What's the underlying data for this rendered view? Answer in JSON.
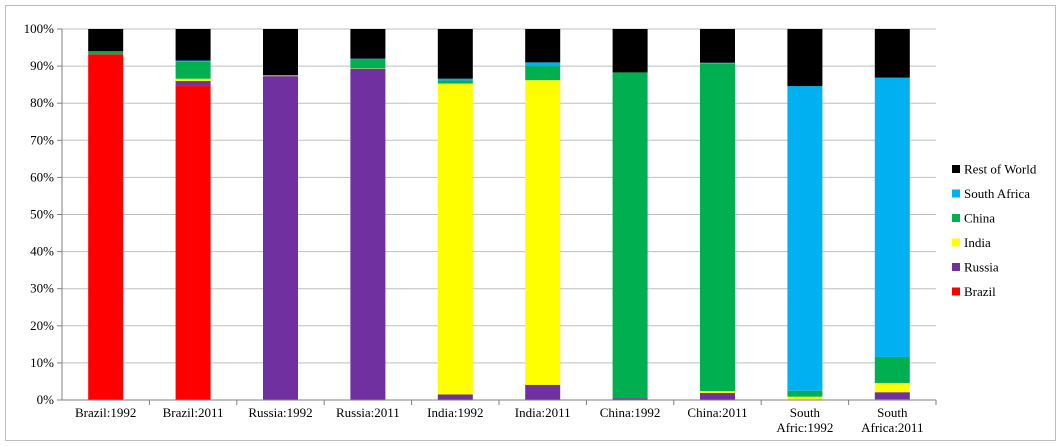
{
  "chart_data": {
    "type": "bar",
    "stacked": true,
    "percent": true,
    "title": "",
    "xlabel": "",
    "ylabel": "",
    "ylim": [
      0,
      100
    ],
    "y_ticks": [
      "0%",
      "10%",
      "20%",
      "30%",
      "40%",
      "50%",
      "60%",
      "70%",
      "80%",
      "90%",
      "100%"
    ],
    "grid": "horizontal",
    "legend_position": "right",
    "categories": [
      [
        "Brazil:1992"
      ],
      [
        "Brazil:2011"
      ],
      [
        "Russia:1992"
      ],
      [
        "Russia:2011"
      ],
      [
        "India:1992"
      ],
      [
        "India:2011"
      ],
      [
        "China:1992"
      ],
      [
        "China:2011"
      ],
      [
        "South",
        "Afric:1992"
      ],
      [
        "South",
        "Africa:2011"
      ]
    ],
    "series": [
      {
        "name": "Brazil",
        "color": "#ff0000",
        "values": [
          93.2,
          84.8,
          0,
          0,
          0,
          0,
          0,
          0,
          0,
          0.2
        ]
      },
      {
        "name": "Russia",
        "color": "#7030a0",
        "values": [
          0,
          1.2,
          87.3,
          89.3,
          1.5,
          4.1,
          0.5,
          1.9,
          0.1,
          1.9
        ]
      },
      {
        "name": "India",
        "color": "#ffff00",
        "values": [
          0,
          0.6,
          0.1,
          0.1,
          83.8,
          82.1,
          0,
          0.5,
          0.8,
          2.5
        ]
      },
      {
        "name": "China",
        "color": "#00b050",
        "values": [
          0.8,
          4.6,
          0.2,
          2.5,
          0.8,
          3.8,
          87.8,
          88.2,
          1.6,
          7.0
        ]
      },
      {
        "name": "South Africa",
        "color": "#00b0f0",
        "values": [
          0,
          0.3,
          0,
          0.1,
          0.5,
          1.0,
          0,
          0.3,
          82.1,
          75.3
        ]
      },
      {
        "name": "Rest of World",
        "color": "#000000",
        "values": [
          6.0,
          8.5,
          12.4,
          8.0,
          13.4,
          9.0,
          11.7,
          9.1,
          15.4,
          13.1
        ]
      }
    ]
  }
}
